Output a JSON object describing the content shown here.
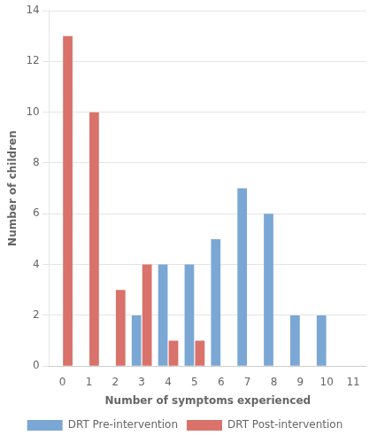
{
  "chart_data": {
    "type": "bar",
    "xlabel": "Number of symptoms experienced",
    "ylabel": "Number of children",
    "categories": [
      0,
      1,
      2,
      3,
      4,
      5,
      6,
      7,
      8,
      9,
      10,
      11
    ],
    "series": [
      {
        "name": "DRT Pre-intervention",
        "color": "#7ba7d4",
        "values": [
          0,
          0,
          0,
          2,
          4,
          4,
          5,
          7,
          6,
          2,
          2,
          0
        ]
      },
      {
        "name": "DRT Post-intervention",
        "color": "#d9726a",
        "values": [
          13,
          10,
          3,
          4,
          1,
          1,
          0,
          0,
          0,
          0,
          0,
          0
        ]
      }
    ],
    "ylim": [
      0,
      14
    ],
    "yticks": [
      0,
      2,
      4,
      6,
      8,
      10,
      12,
      14
    ],
    "grid": true,
    "legend": "bottom"
  }
}
